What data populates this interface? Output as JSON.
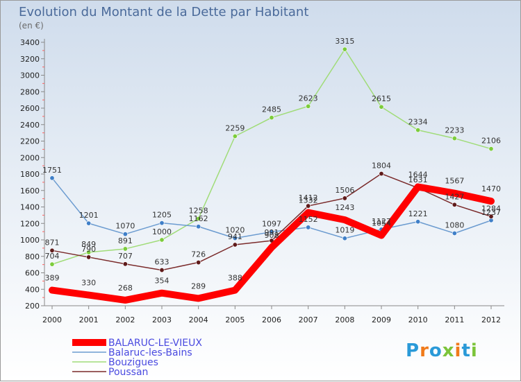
{
  "chart_data": {
    "type": "line",
    "title": "Evolution du Montant de la Dette par Habitant",
    "subtitle": "(en €)",
    "x": [
      "2000",
      "2001",
      "2002",
      "2003",
      "2004",
      "2005",
      "2006",
      "2007",
      "2008",
      "2009",
      "2010",
      "2011",
      "2012"
    ],
    "ylim": [
      200,
      3400
    ],
    "yticks": [
      200,
      400,
      600,
      800,
      1000,
      1200,
      1400,
      1600,
      1800,
      2000,
      2200,
      2400,
      2600,
      2800,
      3000,
      3200,
      3400
    ],
    "grid": false,
    "legend_position": "bottom-left",
    "series": [
      {
        "name": "BALARUC-LE-VIEUX",
        "color": "#ff0000",
        "marker": "#cc0000",
        "values": [
          389,
          330,
          268,
          354,
          289,
          388,
          908,
          1332,
          1243,
          1054,
          1644,
          1567,
          1470
        ]
      },
      {
        "name": "Balaruc-les-Bains",
        "color": "#6b9bd0",
        "marker": "#3f7fc8",
        "values": [
          1751,
          1201,
          1070,
          1205,
          1162,
          1020,
          1097,
          1152,
          1019,
          1127,
          1221,
          1080,
          1237
        ]
      },
      {
        "name": "Bouzigues",
        "color": "#a0dc78",
        "marker": "#7ccc3c",
        "values": [
          704,
          849,
          891,
          1000,
          1258,
          2259,
          2485,
          2623,
          3315,
          2615,
          2334,
          2233,
          2106
        ]
      },
      {
        "name": "Poussan",
        "color": "#7a2a2a",
        "marker": "#5e1a1a",
        "values": [
          871,
          790,
          707,
          633,
          726,
          941,
          991,
          1412,
          1506,
          1804,
          1631,
          1427,
          1284
        ]
      }
    ]
  },
  "logo": {
    "text": "Proxiti"
  }
}
